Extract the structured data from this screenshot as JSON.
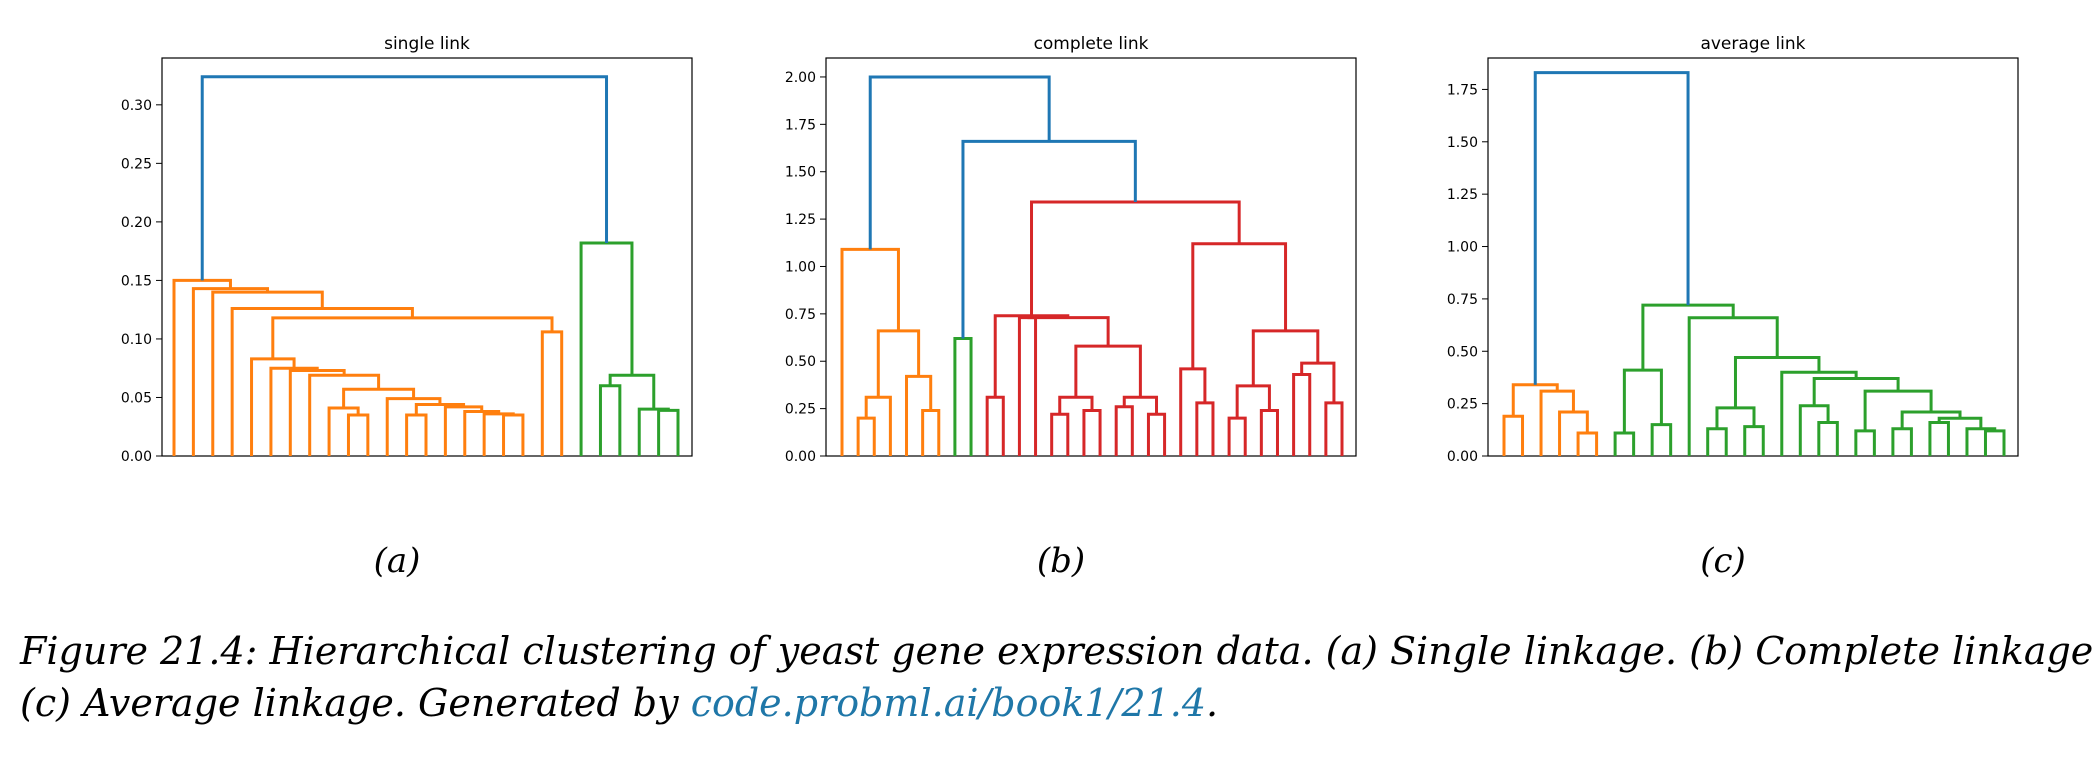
{
  "colors": {
    "blue": "#1f77b4",
    "orange": "#ff7f0e",
    "green": "#2ca02c",
    "red": "#d62728",
    "caption_link": "#1f77a8"
  },
  "chart_data": [
    {
      "type": "dendrogram",
      "title": "single link",
      "sublabel": "(a)",
      "ylim": [
        0,
        0.34
      ],
      "yticks": [
        "0.00",
        "0.05",
        "0.10",
        "0.15",
        "0.20",
        "0.25",
        "0.30"
      ],
      "ytick_values": [
        0,
        0.05,
        0.1,
        0.15,
        0.2,
        0.25,
        0.3
      ],
      "n_leaves": 30,
      "links": [
        {
          "a": 6,
          "b": 7,
          "h": 0.035,
          "c": "orange"
        },
        {
          "a": 5,
          "b": 6.5,
          "h": 0.041,
          "c": "orange"
        },
        {
          "a": 9,
          "b": 10,
          "h": 0.035,
          "c": "orange"
        },
        {
          "a": 14,
          "b": 15,
          "h": 0.035,
          "c": "orange"
        },
        {
          "a": 13,
          "b": 14.5,
          "h": 0.036,
          "c": "orange"
        },
        {
          "a": 12,
          "b": 13.75,
          "h": 0.038,
          "c": "orange"
        },
        {
          "a": 11,
          "b": 12.875,
          "h": 0.042,
          "c": "orange"
        },
        {
          "a": 10.5,
          "b": 11.9375,
          "h": 0.044,
          "c": "orange"
        },
        {
          "a": 8,
          "b": 11.21875,
          "h": 0.049,
          "c": "orange"
        },
        {
          "a": 5.75,
          "b": 9.609375,
          "h": 0.057,
          "c": "orange"
        },
        {
          "a": 4,
          "b": 7.6796875,
          "h": 0.069,
          "c": "orange"
        },
        {
          "a": 3,
          "b": 5.83984375,
          "h": 0.073,
          "c": "orange"
        },
        {
          "a": 2,
          "b": 4.419921875,
          "h": 0.075,
          "c": "orange"
        },
        {
          "a": 1,
          "b": 3.2099609375,
          "h": 0.083,
          "c": "orange"
        },
        {
          "a": 16,
          "b": 17,
          "h": 0.106,
          "c": "orange"
        },
        {
          "a": 2.10498046875,
          "b": 16.5,
          "h": 0.118,
          "c": "orange"
        },
        {
          "a": 0,
          "b": 9.302490234375,
          "h": 0.126,
          "c": "orange"
        },
        {
          "a": 4.6512451171875,
          "b": -1,
          "h": 0.14,
          "c": "orange"
        },
        {
          "a": 1.82562255859375,
          "b": -2,
          "h": 0.143,
          "c": "orange"
        },
        {
          "a": -0.087188720703125,
          "b": -3,
          "h": 0.15,
          "c": "orange"
        },
        {
          "a": 19,
          "b": 20,
          "h": 0.06,
          "c": "green"
        },
        {
          "a": 22,
          "b": 23,
          "h": 0.039,
          "c": "green"
        },
        {
          "a": 21,
          "b": 22.5,
          "h": 0.04,
          "c": "green"
        },
        {
          "a": 19.5,
          "b": 21.75,
          "h": 0.069,
          "c": "green"
        },
        {
          "a": 18,
          "b": 20.625,
          "h": 0.182,
          "c": "green"
        },
        {
          "a": -1.5435943603515625,
          "b": 19.3125,
          "h": 0.324,
          "c": "blue"
        }
      ]
    },
    {
      "type": "dendrogram",
      "title": "complete link",
      "sublabel": "(b)",
      "ylim": [
        0,
        2.1
      ],
      "yticks": [
        "0.00",
        "0.25",
        "0.50",
        "0.75",
        "1.00",
        "1.25",
        "1.50",
        "1.75",
        "2.00"
      ],
      "ytick_values": [
        0,
        0.25,
        0.5,
        0.75,
        1,
        1.25,
        1.5,
        1.75,
        2
      ],
      "n_leaves": 30,
      "links": [
        {
          "a": 0,
          "b": 0,
          "h": 0.37,
          "c": "orange"
        }
      ]
    },
    {
      "type": "dendrogram",
      "title": "average link",
      "sublabel": "(c)",
      "ylim": [
        0,
        1.9
      ],
      "yticks": [
        "0.00",
        "0.25",
        "0.50",
        "0.75",
        "1.00",
        "1.25",
        "1.50",
        "1.75"
      ],
      "ytick_values": [
        0,
        0.25,
        0.5,
        0.75,
        1,
        1.25,
        1.5,
        1.75
      ],
      "n_leaves": 30,
      "links": []
    }
  ],
  "caption": {
    "line1": "Figure 21.4: Hierarchical clustering of yeast gene expression data. (a) Single linkage. (b) Complete linkage.",
    "line2_prefix": "(c) Average linkage. Generated by ",
    "link_text": "code.probml.ai/book1/21.4",
    "line2_suffix": "."
  }
}
